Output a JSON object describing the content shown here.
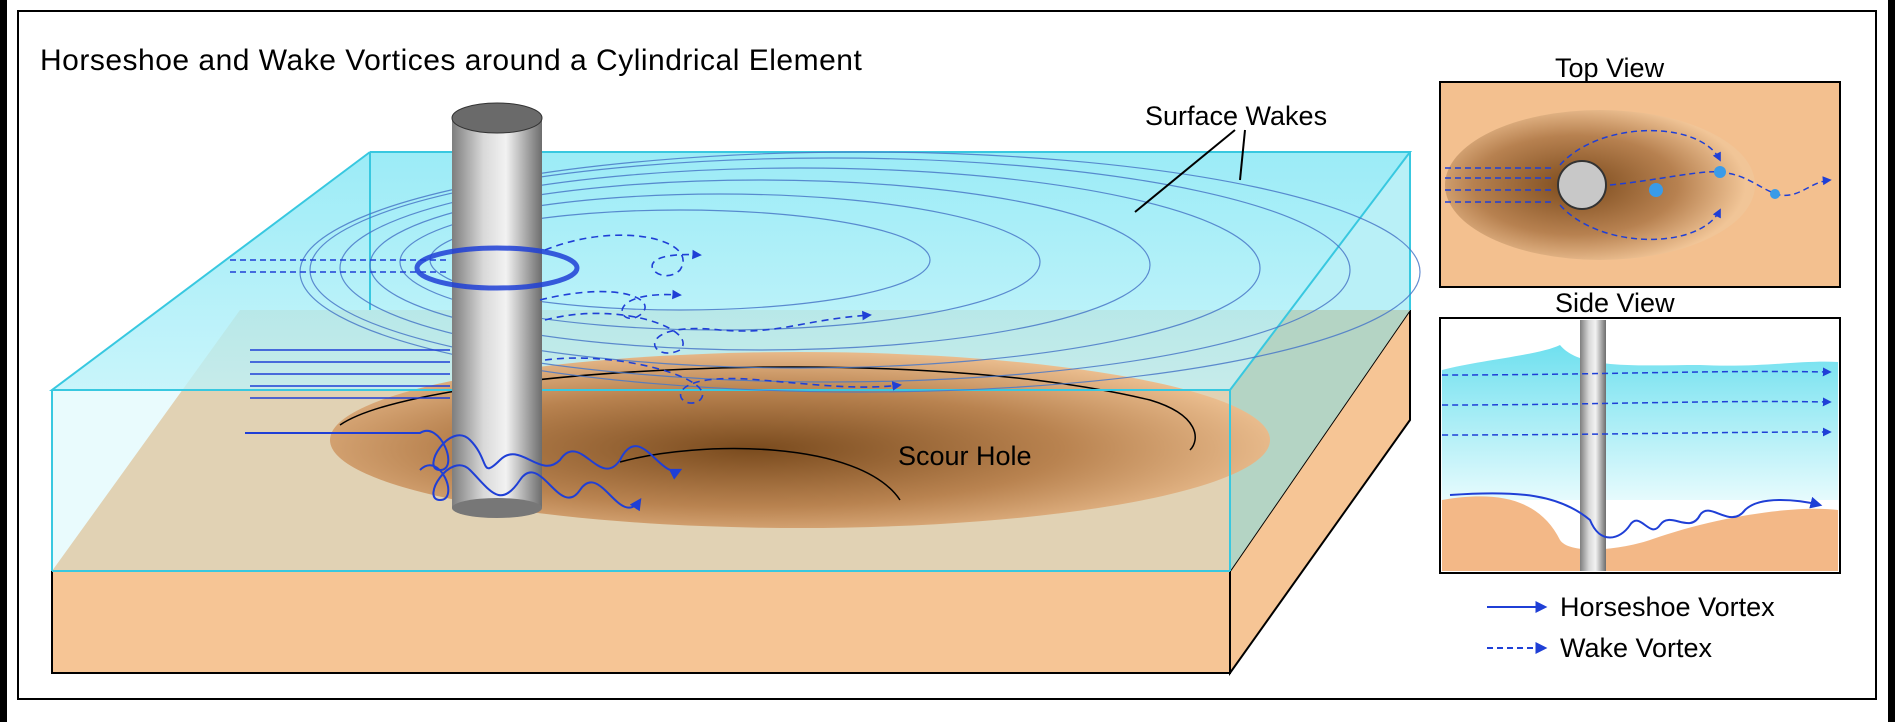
{
  "diagram": {
    "title": "Horseshoe and Wake Vortices around a Cylindrical Element",
    "labels": {
      "surface_wakes": "Surface Wakes",
      "scour_hole": "Scour Hole"
    },
    "panels": {
      "top_view": {
        "title": "Top View"
      },
      "side_view": {
        "title": "Side View"
      }
    },
    "legend": {
      "horseshoe": "Horseshoe Vortex",
      "wake": "Wake Vortex"
    },
    "colors": {
      "water": "#7fe3f0",
      "water_edge": "#38c8e0",
      "sand": "#f5c493",
      "scour": "#8b5a2b",
      "vortex": "#1f3fd6",
      "cylinder": "#a9a9a9"
    }
  }
}
